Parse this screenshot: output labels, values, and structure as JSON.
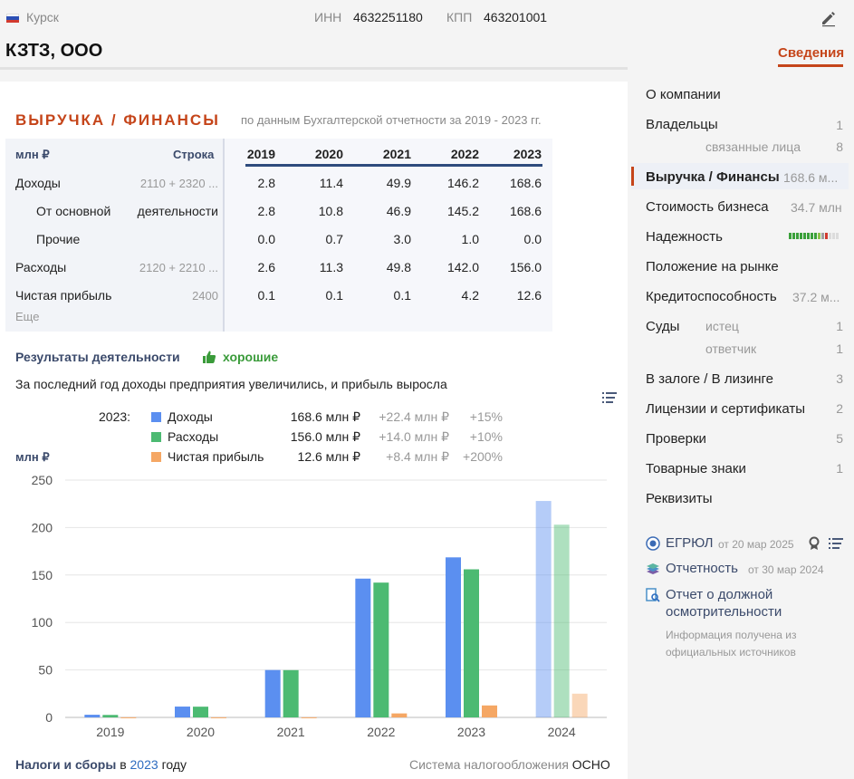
{
  "header": {
    "region": "Курск",
    "inn_label": "ИНН",
    "inn_value": "4632251180",
    "kpp_label": "КПП",
    "kpp_value": "463201001",
    "company_name": "КЗТЗ, ООО",
    "active_tab": "Сведения"
  },
  "finance": {
    "title": "ВЫРУЧКА / ФИНАНСЫ",
    "subtitle": "по данным Бухгалтерской отчетности за 2019 - 2023 гг.",
    "unit_header": "млн ₽",
    "row_header": "Строка",
    "years": [
      "2019",
      "2020",
      "2021",
      "2022",
      "2023"
    ],
    "rows": [
      {
        "label": "Доходы",
        "code": "2110 + 2320 ...",
        "values": [
          "2.8",
          "11.4",
          "49.9",
          "146.2",
          "168.6"
        ]
      },
      {
        "label": "От основной",
        "code": "деятельности",
        "values": [
          "2.8",
          "10.8",
          "46.9",
          "145.2",
          "168.6"
        ]
      },
      {
        "label": "Прочие",
        "code": "",
        "values": [
          "0.0",
          "0.7",
          "3.0",
          "1.0",
          "0.0"
        ]
      },
      {
        "label": "Расходы",
        "code": "2120 + 2210 ...",
        "values": [
          "2.6",
          "11.3",
          "49.8",
          "142.0",
          "156.0"
        ]
      },
      {
        "label": "Чистая прибыль",
        "code": "2400",
        "values": [
          "0.1",
          "0.1",
          "0.1",
          "4.2",
          "12.6"
        ]
      }
    ],
    "more": "Еще"
  },
  "results": {
    "title": "Результаты деятельности",
    "verdict": "хорошие",
    "text": "За последний год доходы предприятия увеличились, и прибыль выросла"
  },
  "legend": {
    "year": "2023:",
    "items": [
      {
        "name": "Доходы",
        "value": "168.6 млн ₽",
        "delta": "+22.4 млн ₽",
        "pct": "+15%",
        "color": "#5b8ff0"
      },
      {
        "name": "Расходы",
        "value": "156.0 млн ₽",
        "delta": "+14.0 млн ₽",
        "pct": "+10%",
        "color": "#4cba72"
      },
      {
        "name": "Чистая прибыль",
        "value": "12.6 млн ₽",
        "delta": "+8.4 млн ₽",
        "pct": "+200%",
        "color": "#f5a764"
      }
    ]
  },
  "chart_data": {
    "type": "bar",
    "ylabel": "млн ₽",
    "categories": [
      "2019",
      "2020",
      "2021",
      "2022",
      "2023",
      "2024"
    ],
    "ylim": [
      0,
      250
    ],
    "yticks": [
      0,
      50,
      100,
      150,
      200,
      250
    ],
    "grid": true,
    "series": [
      {
        "name": "Доходы",
        "color": "#5b8ff0",
        "values": [
          2.8,
          11.4,
          49.9,
          146.2,
          168.6,
          228
        ]
      },
      {
        "name": "Расходы",
        "color": "#4cba72",
        "values": [
          2.6,
          11.3,
          49.8,
          142.0,
          156.0,
          203
        ]
      },
      {
        "name": "Чистая прибыль",
        "color": "#f5a764",
        "values": [
          0.1,
          0.1,
          0.1,
          4.2,
          12.6,
          25
        ]
      }
    ],
    "faded_categories": [
      "2024"
    ]
  },
  "taxes": {
    "title": "Налоги и сборы",
    "in": "в",
    "year": "2023",
    "suffix": "году",
    "system_label": "Система налогообложения",
    "system_value": "ОСНО"
  },
  "sidebar": {
    "about": "О компании",
    "owners": "Владельцы",
    "owners_count": "1",
    "related": "связанные лица",
    "related_count": "8",
    "revenue": "Выручка / Финансы",
    "revenue_value": "168.6 м...",
    "business_value": "Стоимость бизнеса",
    "business_value_amount": "34.7 млн",
    "reliability": "Надежность",
    "reliability_level": 0.75,
    "market": "Положение на рынке",
    "credit": "Кредитоспособность",
    "credit_value": "37.2 м...",
    "courts": "Суды",
    "plaintiff": "истец",
    "plaintiff_count": "1",
    "defendant": "ответчик",
    "defendant_count": "1",
    "pledge": "В залоге / В лизинге",
    "pledge_count": "3",
    "licenses": "Лицензии и сертификаты",
    "licenses_count": "2",
    "inspections": "Проверки",
    "inspections_count": "5",
    "trademarks": "Товарные знаки",
    "trademarks_count": "1",
    "requisites": "Реквизиты"
  },
  "sources": {
    "egrul": "ЕГРЮЛ",
    "egrul_date": "от 20 мар 2025",
    "report": "Отчетность",
    "report_date": "от 30 мар 2024",
    "due_diligence_1": "Отчет о должной",
    "due_diligence_2": "осмотрительности",
    "note": "Информация получена из официальных источников"
  }
}
